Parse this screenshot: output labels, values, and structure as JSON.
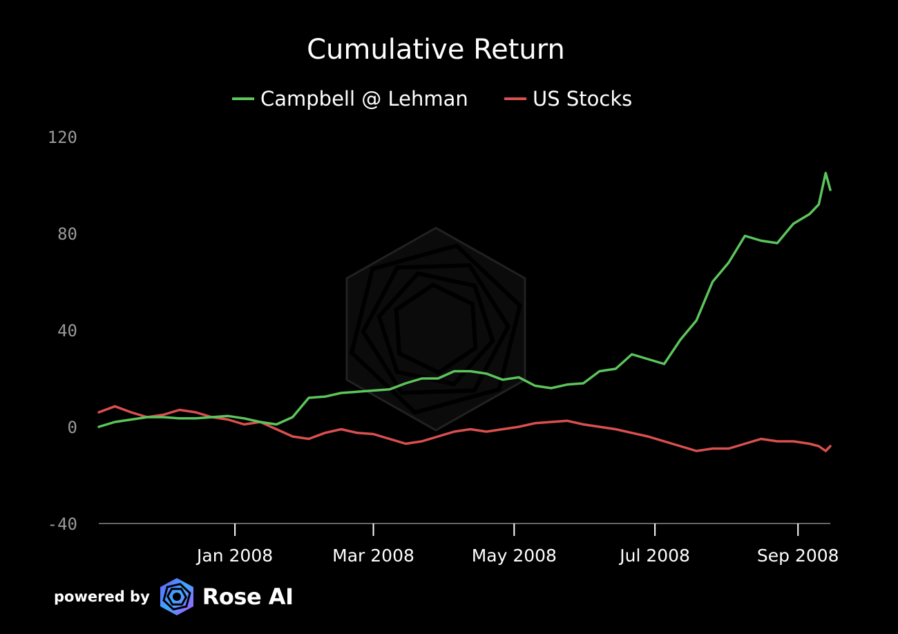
{
  "chart_data": {
    "type": "line",
    "title": "Cumulative Return",
    "xlabel": "",
    "ylabel": "",
    "ylim": [
      -40,
      120
    ],
    "yticks": [
      "120",
      "80",
      "40",
      "0",
      "-40"
    ],
    "xticks": [
      {
        "label": "Jan 2008",
        "date": "2008-01-01"
      },
      {
        "label": "Mar 2008",
        "date": "2008-03-01"
      },
      {
        "label": "May 2008",
        "date": "2008-05-01"
      },
      {
        "label": "Jul 2008",
        "date": "2008-07-01"
      },
      {
        "label": "Sep 2008",
        "date": "2008-09-01"
      }
    ],
    "xlim": [
      "2007-11-03",
      "2008-09-15"
    ],
    "legend_position": "top-center",
    "series": [
      {
        "name": "Campbell @ Lehman",
        "color": "#5cc55c",
        "points": [
          [
            "2007-11-03",
            0.0
          ],
          [
            "2007-11-10",
            2.0
          ],
          [
            "2007-11-17",
            3.0
          ],
          [
            "2007-11-24",
            4.0
          ],
          [
            "2007-12-01",
            4.0
          ],
          [
            "2007-12-08",
            3.5
          ],
          [
            "2007-12-15",
            3.5
          ],
          [
            "2007-12-22",
            4.0
          ],
          [
            "2007-12-29",
            4.5
          ],
          [
            "2008-01-05",
            3.5
          ],
          [
            "2008-01-12",
            2.0
          ],
          [
            "2008-01-19",
            1.0
          ],
          [
            "2008-01-26",
            4.0
          ],
          [
            "2008-02-02",
            12.0
          ],
          [
            "2008-02-09",
            12.5
          ],
          [
            "2008-02-16",
            14.0
          ],
          [
            "2008-02-23",
            14.5
          ],
          [
            "2008-03-01",
            15.0
          ],
          [
            "2008-03-08",
            15.5
          ],
          [
            "2008-03-15",
            18.0
          ],
          [
            "2008-03-22",
            20.0
          ],
          [
            "2008-03-29",
            20.0
          ],
          [
            "2008-04-05",
            23.0
          ],
          [
            "2008-04-12",
            23.0
          ],
          [
            "2008-04-19",
            22.0
          ],
          [
            "2008-04-26",
            19.5
          ],
          [
            "2008-05-03",
            20.5
          ],
          [
            "2008-05-10",
            17.0
          ],
          [
            "2008-05-17",
            16.0
          ],
          [
            "2008-05-24",
            17.5
          ],
          [
            "2008-05-31",
            18.0
          ],
          [
            "2008-06-07",
            23.0
          ],
          [
            "2008-06-14",
            24.0
          ],
          [
            "2008-06-21",
            30.0
          ],
          [
            "2008-06-28",
            28.0
          ],
          [
            "2008-07-05",
            26.0
          ],
          [
            "2008-07-12",
            36.0
          ],
          [
            "2008-07-19",
            44.0
          ],
          [
            "2008-07-26",
            60.0
          ],
          [
            "2008-08-02",
            68.0
          ],
          [
            "2008-08-09",
            79.0
          ],
          [
            "2008-08-16",
            77.0
          ],
          [
            "2008-08-23",
            76.0
          ],
          [
            "2008-08-30",
            84.0
          ],
          [
            "2008-09-06",
            88.0
          ],
          [
            "2008-09-10",
            92.0
          ],
          [
            "2008-09-13",
            105.0
          ],
          [
            "2008-09-15",
            98.0
          ]
        ]
      },
      {
        "name": "US Stocks",
        "color": "#d9504f",
        "points": [
          [
            "2007-11-03",
            6.0
          ],
          [
            "2007-11-10",
            8.5
          ],
          [
            "2007-11-17",
            6.0
          ],
          [
            "2007-11-24",
            4.0
          ],
          [
            "2007-12-01",
            5.0
          ],
          [
            "2007-12-08",
            7.0
          ],
          [
            "2007-12-15",
            6.0
          ],
          [
            "2007-12-22",
            4.0
          ],
          [
            "2007-12-29",
            3.0
          ],
          [
            "2008-01-05",
            1.0
          ],
          [
            "2008-01-12",
            2.0
          ],
          [
            "2008-01-19",
            -1.0
          ],
          [
            "2008-01-26",
            -4.0
          ],
          [
            "2008-02-02",
            -5.0
          ],
          [
            "2008-02-09",
            -2.5
          ],
          [
            "2008-02-16",
            -1.0
          ],
          [
            "2008-02-23",
            -2.5
          ],
          [
            "2008-03-01",
            -3.0
          ],
          [
            "2008-03-08",
            -5.0
          ],
          [
            "2008-03-15",
            -7.0
          ],
          [
            "2008-03-22",
            -6.0
          ],
          [
            "2008-03-29",
            -4.0
          ],
          [
            "2008-04-05",
            -2.0
          ],
          [
            "2008-04-12",
            -1.0
          ],
          [
            "2008-04-19",
            -2.0
          ],
          [
            "2008-04-26",
            -1.0
          ],
          [
            "2008-05-03",
            0.0
          ],
          [
            "2008-05-10",
            1.5
          ],
          [
            "2008-05-17",
            2.0
          ],
          [
            "2008-05-24",
            2.5
          ],
          [
            "2008-05-31",
            1.0
          ],
          [
            "2008-06-07",
            0.0
          ],
          [
            "2008-06-14",
            -1.0
          ],
          [
            "2008-06-21",
            -2.5
          ],
          [
            "2008-06-28",
            -4.0
          ],
          [
            "2008-07-05",
            -6.0
          ],
          [
            "2008-07-12",
            -8.0
          ],
          [
            "2008-07-19",
            -10.0
          ],
          [
            "2008-07-26",
            -9.0
          ],
          [
            "2008-08-02",
            -9.0
          ],
          [
            "2008-08-09",
            -7.0
          ],
          [
            "2008-08-16",
            -5.0
          ],
          [
            "2008-08-23",
            -6.0
          ],
          [
            "2008-08-30",
            -6.0
          ],
          [
            "2008-09-06",
            -7.0
          ],
          [
            "2008-09-10",
            -8.0
          ],
          [
            "2008-09-13",
            -10.0
          ],
          [
            "2008-09-15",
            -8.0
          ]
        ]
      }
    ]
  },
  "branding": {
    "powered_by": "powered by",
    "brand": "Rose AI"
  }
}
